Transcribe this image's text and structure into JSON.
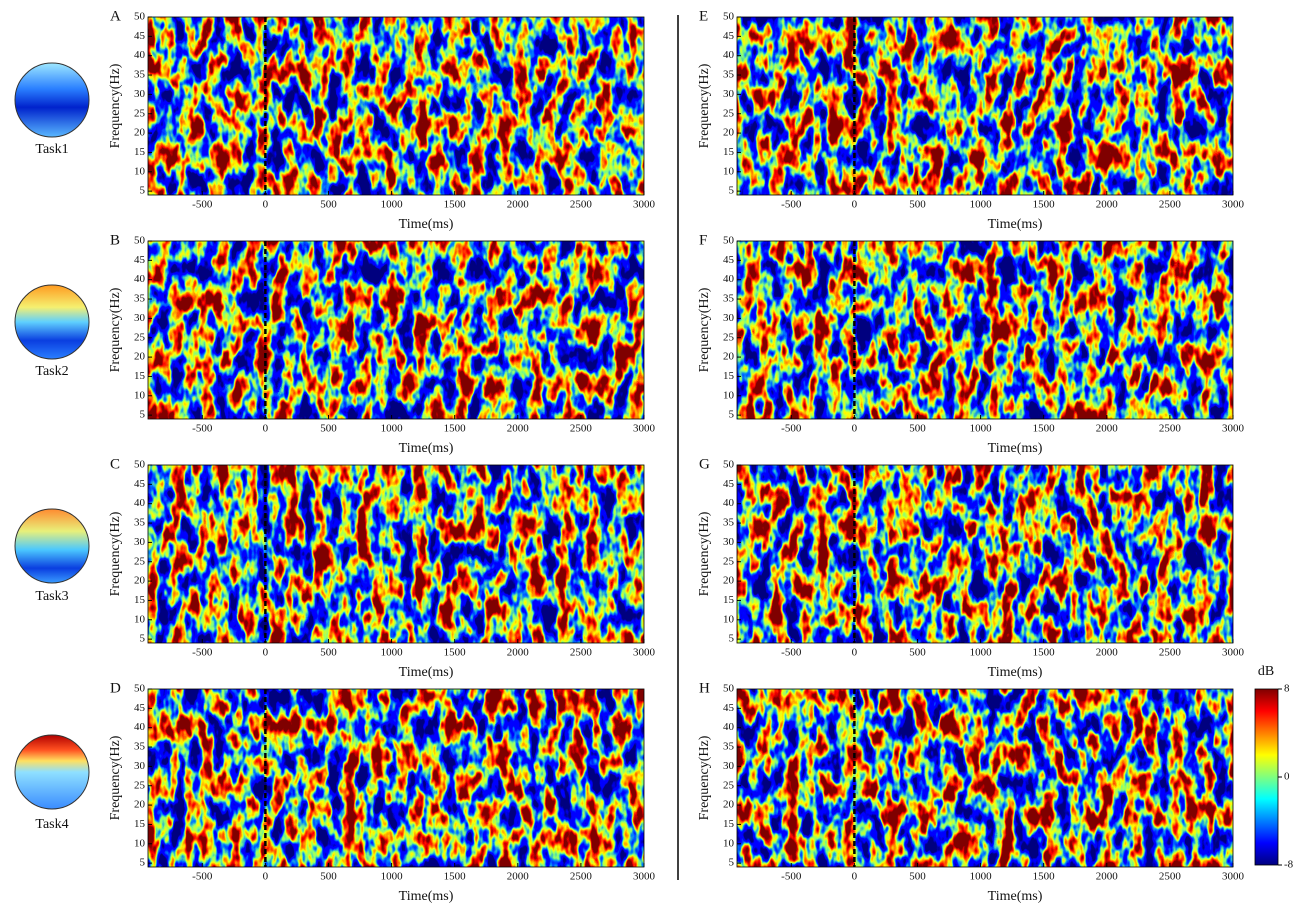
{
  "tasks": [
    "Task1",
    "Task2",
    "Task3",
    "Task4"
  ],
  "colorbar": {
    "label": "dB",
    "lim": [
      -8,
      8
    ],
    "ticks": [
      -8,
      0,
      8
    ]
  },
  "chart_data": [
    {
      "type": "heatmap",
      "panel": "A",
      "xlabel": "Time(ms)",
      "ylabel": "Frequency(Hz)",
      "xlim": [
        -930,
        3000
      ],
      "ylim": [
        4,
        50
      ],
      "xticks": [
        -500,
        0,
        500,
        1000,
        1500,
        2000,
        2500,
        3000
      ],
      "yticks": [
        5,
        10,
        15,
        20,
        25,
        30,
        35,
        40,
        45,
        50
      ],
      "onset": 0
    },
    {
      "type": "heatmap",
      "panel": "B",
      "xlabel": "Time(ms)",
      "ylabel": "Frequency(Hz)",
      "xlim": [
        -930,
        3000
      ],
      "ylim": [
        4,
        50
      ],
      "xticks": [
        -500,
        0,
        500,
        1000,
        1500,
        2000,
        2500,
        3000
      ],
      "yticks": [
        5,
        10,
        15,
        20,
        25,
        30,
        35,
        40,
        45,
        50
      ],
      "onset": 0
    },
    {
      "type": "heatmap",
      "panel": "C",
      "xlabel": "Time(ms)",
      "ylabel": "Frequency(Hz)",
      "xlim": [
        -930,
        3000
      ],
      "ylim": [
        4,
        50
      ],
      "xticks": [
        -500,
        0,
        500,
        1000,
        1500,
        2000,
        2500,
        3000
      ],
      "yticks": [
        5,
        10,
        15,
        20,
        25,
        30,
        35,
        40,
        45,
        50
      ],
      "onset": 0
    },
    {
      "type": "heatmap",
      "panel": "D",
      "xlabel": "Time(ms)",
      "ylabel": "Frequency(Hz)",
      "xlim": [
        -930,
        3000
      ],
      "ylim": [
        4,
        50
      ],
      "xticks": [
        -500,
        0,
        500,
        1000,
        1500,
        2000,
        2500,
        3000
      ],
      "yticks": [
        5,
        10,
        15,
        20,
        25,
        30,
        35,
        40,
        45,
        50
      ],
      "onset": 0
    },
    {
      "type": "heatmap",
      "panel": "E",
      "xlabel": "Time(ms)",
      "ylabel": "Frequency(Hz)",
      "xlim": [
        -930,
        3000
      ],
      "ylim": [
        4,
        50
      ],
      "xticks": [
        -500,
        0,
        500,
        1000,
        1500,
        2000,
        2500,
        3000
      ],
      "yticks": [
        5,
        10,
        15,
        20,
        25,
        30,
        35,
        40,
        45,
        50
      ],
      "onset": 0
    },
    {
      "type": "heatmap",
      "panel": "F",
      "xlabel": "Time(ms)",
      "ylabel": "Frequency(Hz)",
      "xlim": [
        -930,
        3000
      ],
      "ylim": [
        4,
        50
      ],
      "xticks": [
        -500,
        0,
        500,
        1000,
        1500,
        2000,
        2500,
        3000
      ],
      "yticks": [
        5,
        10,
        15,
        20,
        25,
        30,
        35,
        40,
        45,
        50
      ],
      "onset": 0
    },
    {
      "type": "heatmap",
      "panel": "G",
      "xlabel": "Time(ms)",
      "ylabel": "Frequency(Hz)",
      "xlim": [
        -930,
        3000
      ],
      "ylim": [
        4,
        50
      ],
      "xticks": [
        -500,
        0,
        500,
        1000,
        1500,
        2000,
        2500,
        3000
      ],
      "yticks": [
        5,
        10,
        15,
        20,
        25,
        30,
        35,
        40,
        45,
        50
      ],
      "onset": 0
    },
    {
      "type": "heatmap",
      "panel": "H",
      "xlabel": "Time(ms)",
      "ylabel": "Frequency(Hz)",
      "xlim": [
        -930,
        3000
      ],
      "ylim": [
        4,
        50
      ],
      "xticks": [
        -500,
        0,
        500,
        1000,
        1500,
        2000,
        2500,
        3000
      ],
      "yticks": [
        5,
        10,
        15,
        20,
        25,
        30,
        35,
        40,
        45,
        50
      ],
      "onset": 0
    }
  ]
}
